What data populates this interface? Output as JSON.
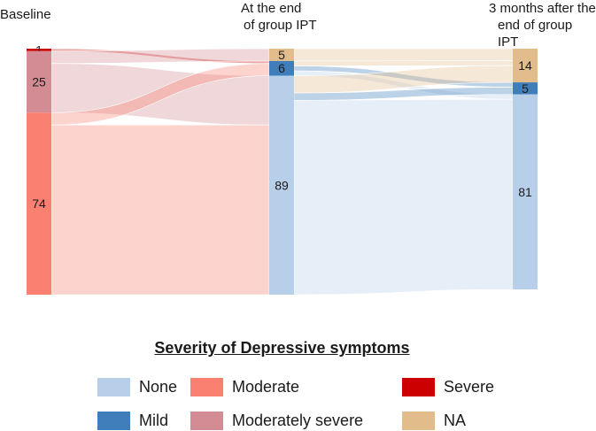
{
  "chart_data": {
    "type": "sankey",
    "columns": [
      {
        "title": "Baseline",
        "nodes": [
          {
            "category": "Severe",
            "value": 1,
            "label": "1"
          },
          {
            "category": "Moderately severe",
            "value": 25,
            "label": "25"
          },
          {
            "category": "Moderate",
            "value": 74,
            "label": "74"
          }
        ]
      },
      {
        "title": "At the end\nof group IPT",
        "nodes": [
          {
            "category": "NA",
            "value": 5,
            "label": "5"
          },
          {
            "category": "Mild",
            "value": 6,
            "label": "6"
          },
          {
            "category": "None",
            "value": 89,
            "label": "89"
          }
        ]
      },
      {
        "title": "3 months after the\nend of group IPT",
        "nodes": [
          {
            "category": "NA",
            "value": 14,
            "label": "14"
          },
          {
            "category": "Mild",
            "value": 5,
            "label": "5"
          },
          {
            "category": "None",
            "value": 81,
            "label": "81"
          }
        ]
      }
    ],
    "flows": [
      {
        "stage": 0,
        "from": "Severe",
        "to": "Mild",
        "value": 1
      },
      {
        "stage": 0,
        "from": "Moderately severe",
        "to": "NA",
        "value": 5
      },
      {
        "stage": 0,
        "from": "Moderately severe",
        "to": "None",
        "value": 20
      },
      {
        "stage": 0,
        "from": "Moderate",
        "to": "Mild",
        "value": 5
      },
      {
        "stage": 0,
        "from": "Moderate",
        "to": "None",
        "value": 69
      },
      {
        "stage": 1,
        "from": "NA",
        "to": "NA",
        "value": 5
      },
      {
        "stage": 1,
        "from": "Mild",
        "to": "NA",
        "value": 2
      },
      {
        "stage": 1,
        "from": "Mild",
        "to": "Mild",
        "value": 2
      },
      {
        "stage": 1,
        "from": "Mild",
        "to": "None",
        "value": 2
      },
      {
        "stage": 1,
        "from": "None",
        "to": "NA",
        "value": 7
      },
      {
        "stage": 1,
        "from": "None",
        "to": "Mild",
        "value": 3
      },
      {
        "stage": 1,
        "from": "None",
        "to": "None",
        "value": 79
      }
    ],
    "legend": {
      "title": "Severity of Depressive symptoms",
      "position": "bottom",
      "items": [
        {
          "category": "None",
          "label": "None"
        },
        {
          "category": "Mild",
          "label": "Mild"
        },
        {
          "category": "Moderate",
          "label": "Moderate"
        },
        {
          "category": "Moderately severe",
          "label": "Moderately severe"
        },
        {
          "category": "Severe",
          "label": "Severe"
        },
        {
          "category": "NA",
          "label": "NA"
        }
      ]
    },
    "colors": {
      "None": "#b8cfea",
      "Mild": "#3f7ebb",
      "Moderate": "#fa8072",
      "Moderately severe": "#d38c93",
      "Severe": "#cc0000",
      "NA": "#e2bd8b"
    }
  }
}
